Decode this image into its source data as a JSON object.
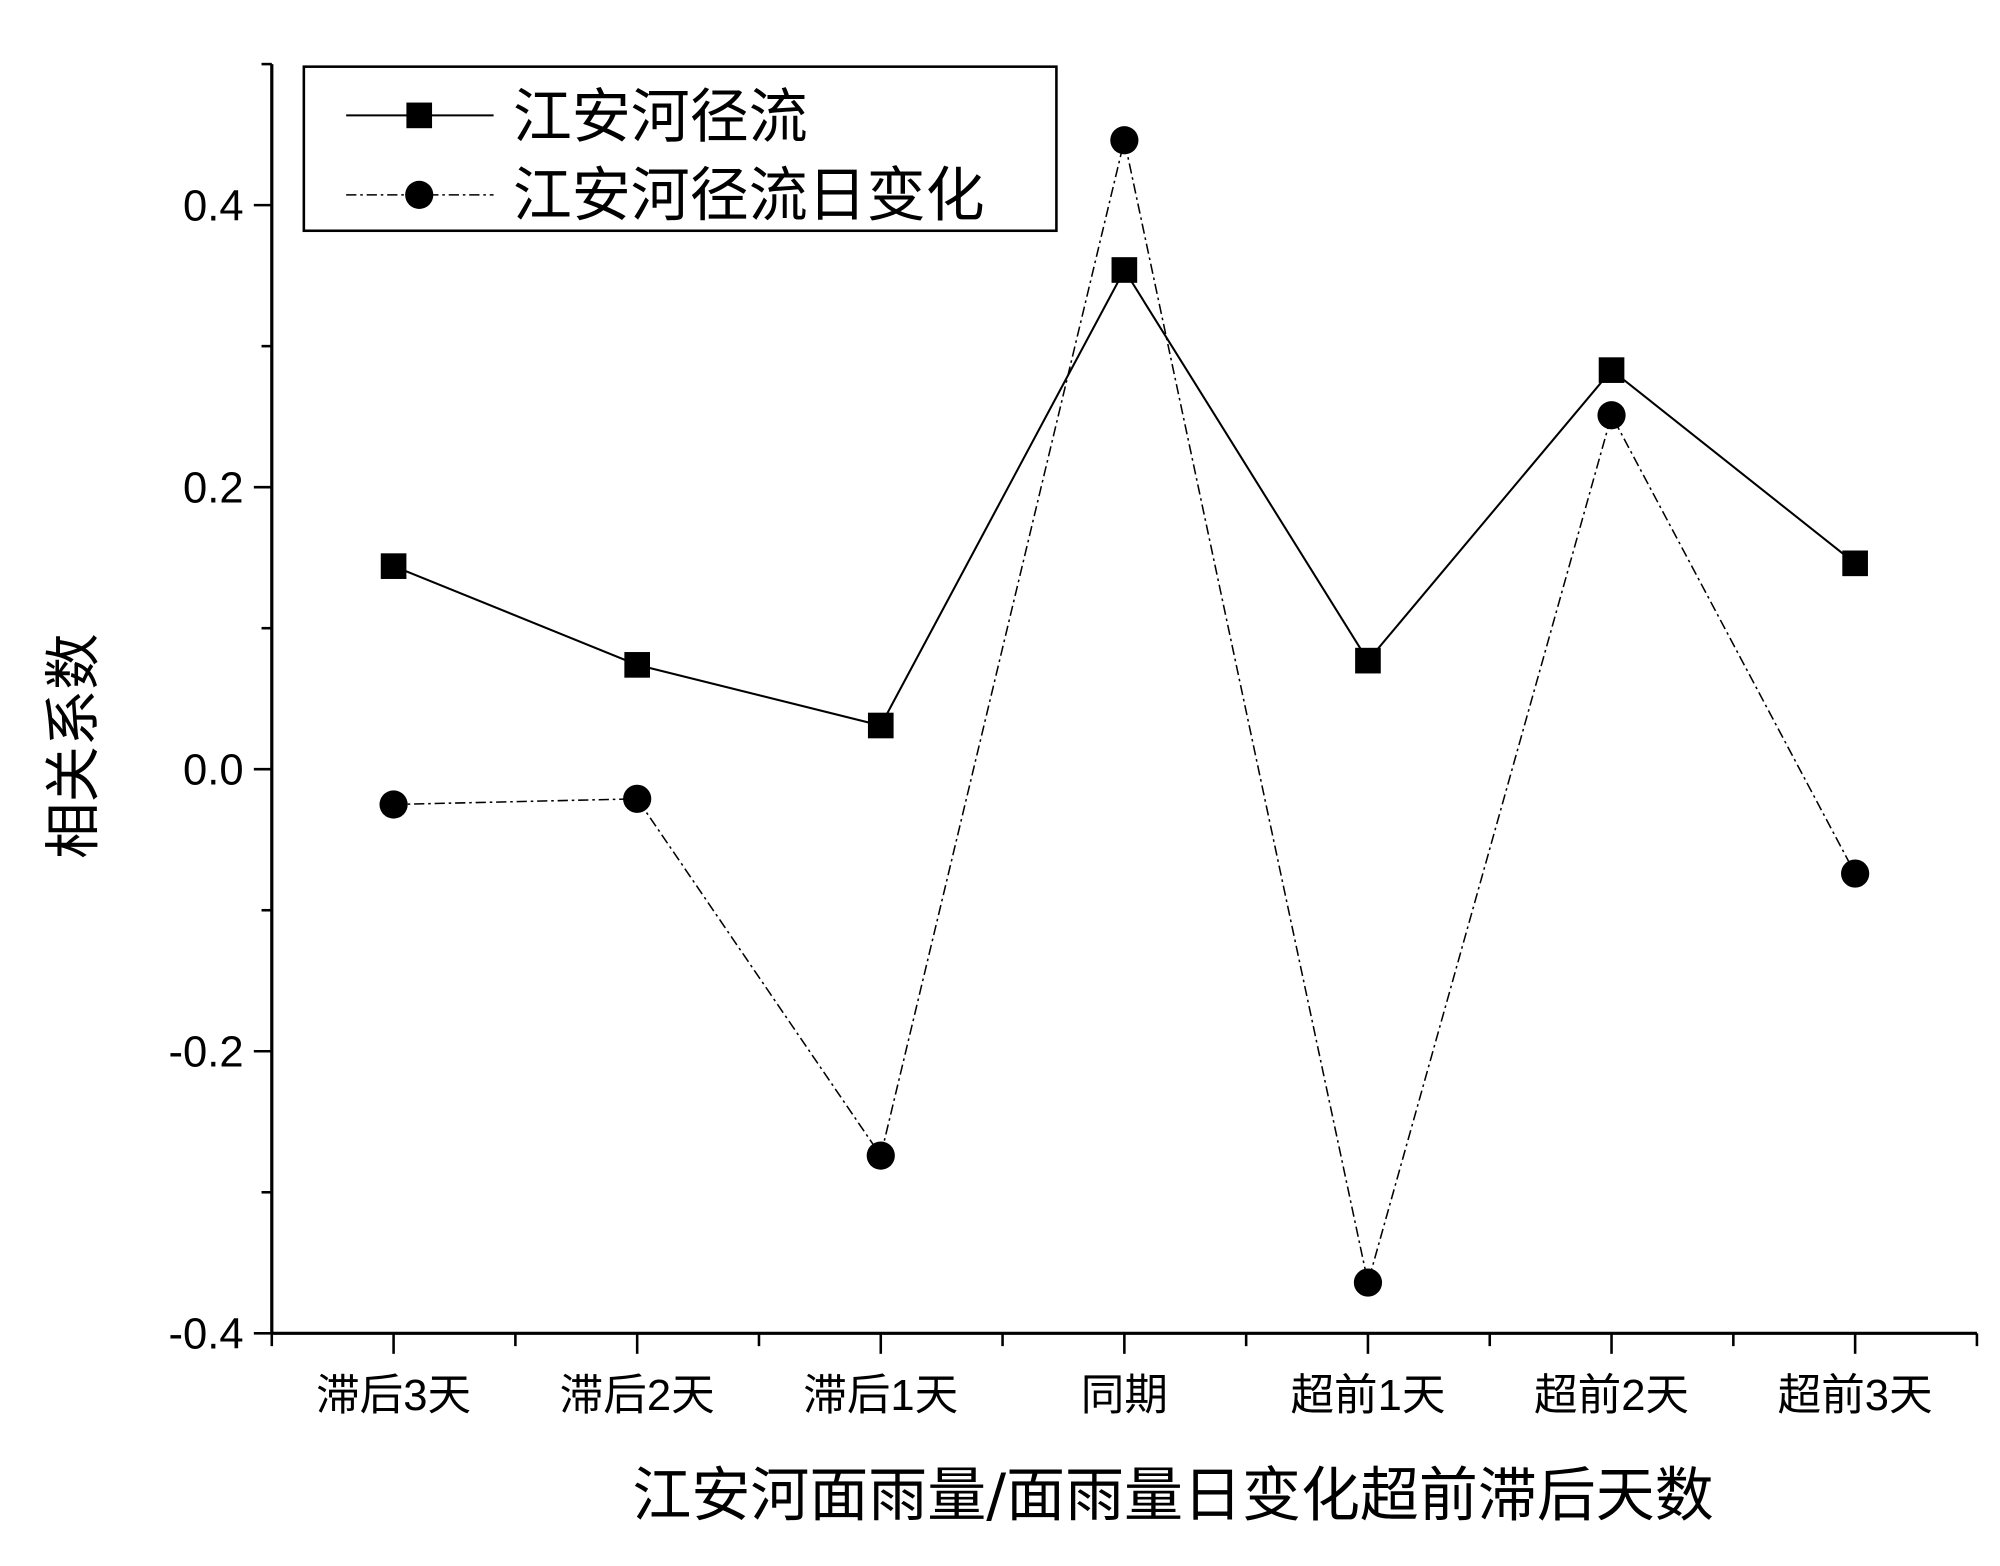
{
  "chart_data": {
    "type": "line",
    "title": "",
    "xlabel": "江安河面雨量/面雨量日变化超前滞后天数",
    "ylabel": "相关系数",
    "categories": [
      "滞后3天",
      "滞后2天",
      "滞后1天",
      "同期",
      "超前1天",
      "超前2天",
      "超前3天"
    ],
    "ylim": [
      -0.4,
      0.5
    ],
    "yticks": [
      "-0.4",
      "-0.2",
      "0.0",
      "0.2",
      "0.4"
    ],
    "ytick_values": [
      -0.4,
      -0.2,
      0.0,
      0.2,
      0.4
    ],
    "grid": false,
    "legend_position": "top-left",
    "series": [
      {
        "name": "江安河径流",
        "marker": "square",
        "line": "solid",
        "values": [
          0.144,
          0.074,
          0.031,
          0.354,
          0.077,
          0.283,
          0.146
        ]
      },
      {
        "name": "江安河径流日变化",
        "marker": "circle",
        "line": "dash-dot",
        "values": [
          -0.025,
          -0.021,
          -0.274,
          0.446,
          -0.364,
          0.251,
          -0.074
        ]
      }
    ],
    "colors": {
      "line": "#000000",
      "background": "#ffffff"
    }
  }
}
